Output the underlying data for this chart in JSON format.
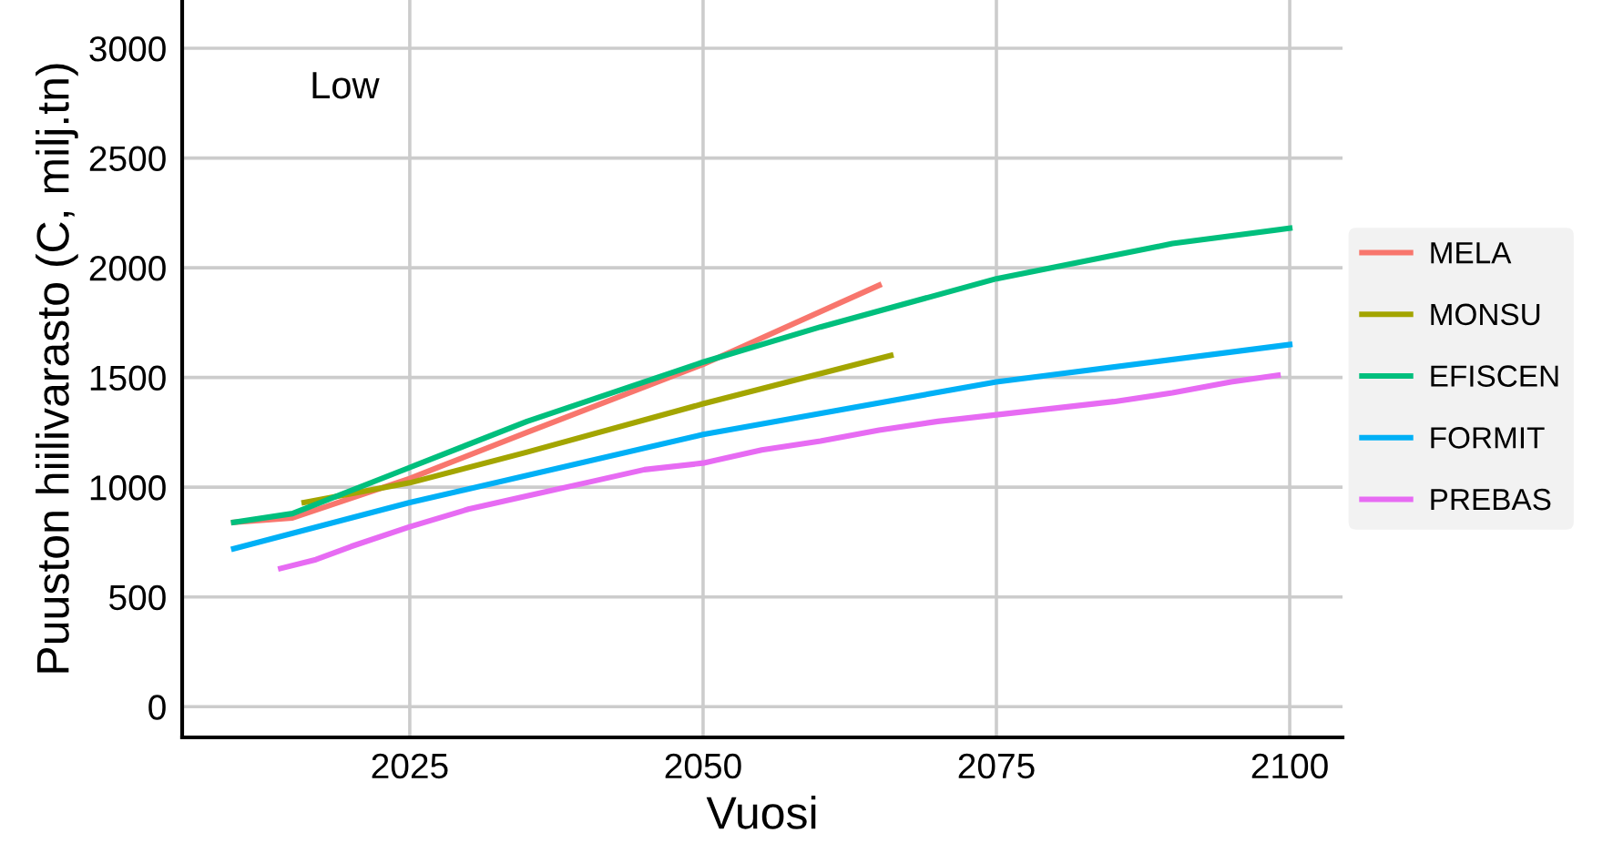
{
  "chart_data": {
    "type": "line",
    "xlabel": "Vuosi",
    "ylabel": "Puuston hiilivarasto (C, milj.tn)",
    "annotations": [
      "Low"
    ],
    "xlim": [
      2005.6,
      2104.5
    ],
    "xticks": [
      2025,
      2050,
      2075,
      2100
    ],
    "ylim": [
      -140,
      3220
    ],
    "yticks": [
      0,
      500,
      1000,
      1500,
      2000,
      2500,
      3000
    ],
    "grid": true,
    "legend": "right",
    "line_style": "solid",
    "series": [
      {
        "name": "MELA",
        "color": "#f8766d",
        "x": [
          2010,
          2015,
          2025,
          2035,
          2050,
          2065
        ],
        "values": [
          840,
          860,
          1040,
          1250,
          1560,
          1920
        ]
      },
      {
        "name": "MONSU",
        "color": "#a3a500",
        "x": [
          2016,
          2025,
          2035,
          2050,
          2066
        ],
        "values": [
          930,
          1020,
          1160,
          1380,
          1600
        ]
      },
      {
        "name": "EFISCEN",
        "color": "#00bf7d",
        "x": [
          2010,
          2015,
          2025,
          2035,
          2050,
          2060,
          2075,
          2090,
          2100
        ],
        "values": [
          840,
          880,
          1090,
          1300,
          1570,
          1730,
          1950,
          2110,
          2180
        ]
      },
      {
        "name": "FORMIT",
        "color": "#00b0f6",
        "x": [
          2010,
          2025,
          2050,
          2075,
          2100
        ],
        "values": [
          720,
          930,
          1240,
          1480,
          1650
        ]
      },
      {
        "name": "PREBAS",
        "color": "#e76bf3",
        "x": [
          2014,
          2017,
          2020,
          2025,
          2030,
          2035,
          2040,
          2045,
          2050,
          2055,
          2060,
          2065,
          2070,
          2075,
          2080,
          2085,
          2090,
          2095,
          2099
        ],
        "values": [
          630,
          670,
          730,
          820,
          900,
          960,
          1020,
          1080,
          1110,
          1170,
          1210,
          1260,
          1300,
          1330,
          1360,
          1390,
          1430,
          1480,
          1510
        ]
      }
    ]
  }
}
